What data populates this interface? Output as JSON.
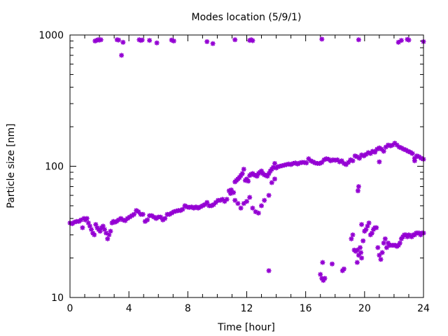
{
  "chart_data": {
    "type": "scatter",
    "title": "Modes location (5/9/1)",
    "xlabel": "Time [hour]",
    "ylabel": "Particle size [nm]",
    "xlim": [
      0,
      24
    ],
    "ylim": [
      10,
      1000
    ],
    "y_scale": "log",
    "x_ticks": [
      0,
      4,
      8,
      12,
      16,
      20,
      24
    ],
    "x_tick_labels": [
      "0",
      "4",
      "8",
      "12",
      "16",
      "20",
      "24"
    ],
    "y_ticks": [
      10,
      100,
      1000
    ],
    "y_tick_labels": [
      "10",
      "100",
      "1000"
    ],
    "grid": false,
    "legend": "none",
    "marker_color": "#9400d3",
    "series": [
      {
        "points": [
          [
            0.0,
            37
          ],
          [
            0.15,
            36.5
          ],
          [
            0.3,
            37.5
          ],
          [
            0.45,
            38
          ],
          [
            0.6,
            38
          ],
          [
            0.75,
            39
          ],
          [
            0.85,
            34
          ],
          [
            0.95,
            40
          ],
          [
            1.05,
            39
          ],
          [
            1.15,
            40
          ],
          [
            1.25,
            37
          ],
          [
            1.35,
            35
          ],
          [
            1.45,
            33
          ],
          [
            1.55,
            31
          ],
          [
            1.65,
            30
          ],
          [
            1.75,
            36
          ],
          [
            1.85,
            34
          ],
          [
            1.95,
            33
          ],
          [
            2.05,
            32
          ],
          [
            2.15,
            34
          ],
          [
            2.25,
            35
          ],
          [
            2.35,
            33
          ],
          [
            2.45,
            31
          ],
          [
            2.55,
            28
          ],
          [
            2.65,
            30
          ],
          [
            2.75,
            32
          ],
          [
            2.85,
            37
          ],
          [
            2.95,
            38
          ],
          [
            3.05,
            37.5
          ],
          [
            3.15,
            38
          ],
          [
            3.3,
            39
          ],
          [
            3.45,
            40
          ],
          [
            3.6,
            39
          ],
          [
            3.75,
            38.5
          ],
          [
            3.9,
            40
          ],
          [
            4.05,
            41
          ],
          [
            4.2,
            42
          ],
          [
            4.35,
            43
          ],
          [
            4.5,
            46
          ],
          [
            4.65,
            45
          ],
          [
            4.8,
            43
          ],
          [
            4.95,
            43
          ],
          [
            5.1,
            38
          ],
          [
            5.25,
            39
          ],
          [
            5.4,
            42
          ],
          [
            5.55,
            42
          ],
          [
            5.7,
            41
          ],
          [
            5.85,
            40
          ],
          [
            6.0,
            41
          ],
          [
            6.15,
            41
          ],
          [
            6.3,
            39
          ],
          [
            6.45,
            40
          ],
          [
            6.6,
            43
          ],
          [
            6.75,
            43
          ],
          [
            6.9,
            44
          ],
          [
            7.05,
            45
          ],
          [
            7.2,
            45.5
          ],
          [
            7.35,
            46
          ],
          [
            7.5,
            46
          ],
          [
            7.65,
            47
          ],
          [
            7.8,
            50
          ],
          [
            7.95,
            49
          ],
          [
            8.1,
            48.5
          ],
          [
            8.25,
            49
          ],
          [
            8.4,
            48
          ],
          [
            8.55,
            49
          ],
          [
            8.7,
            48
          ],
          [
            8.85,
            49
          ],
          [
            9.0,
            50
          ],
          [
            9.15,
            51
          ],
          [
            9.3,
            53
          ],
          [
            9.45,
            50
          ],
          [
            9.6,
            50
          ],
          [
            9.75,
            51
          ],
          [
            9.9,
            53
          ],
          [
            10.05,
            55
          ],
          [
            10.2,
            55
          ],
          [
            10.35,
            56
          ],
          [
            10.5,
            54
          ],
          [
            10.65,
            56
          ],
          [
            10.8,
            65
          ],
          [
            10.95,
            66
          ],
          [
            11.1,
            63
          ],
          [
            11.2,
            76
          ],
          [
            11.3,
            78
          ],
          [
            11.4,
            80
          ],
          [
            11.5,
            82
          ],
          [
            11.6,
            85
          ],
          [
            11.7,
            88
          ],
          [
            11.8,
            95
          ],
          [
            11.9,
            78
          ],
          [
            12.0,
            80
          ],
          [
            12.1,
            77
          ],
          [
            12.2,
            85
          ],
          [
            12.3,
            87
          ],
          [
            12.4,
            88
          ],
          [
            12.5,
            86
          ],
          [
            12.6,
            85
          ],
          [
            12.7,
            84
          ],
          [
            12.8,
            88
          ],
          [
            12.9,
            90
          ],
          [
            13.0,
            92
          ],
          [
            13.1,
            88
          ],
          [
            13.2,
            86
          ],
          [
            13.3,
            85
          ],
          [
            13.4,
            84
          ],
          [
            13.5,
            88
          ],
          [
            13.6,
            92
          ],
          [
            13.7,
            95
          ],
          [
            13.8,
            98
          ],
          [
            13.9,
            105
          ],
          [
            14.0,
            97
          ],
          [
            14.1,
            99
          ],
          [
            14.25,
            100
          ],
          [
            14.4,
            101
          ],
          [
            14.55,
            102
          ],
          [
            14.7,
            103
          ],
          [
            14.85,
            104
          ],
          [
            15.0,
            103
          ],
          [
            15.15,
            105
          ],
          [
            15.3,
            106
          ],
          [
            15.45,
            104
          ],
          [
            15.6,
            106
          ],
          [
            15.75,
            107
          ],
          [
            15.9,
            107
          ],
          [
            16.05,
            106
          ],
          [
            16.2,
            114
          ],
          [
            16.35,
            110
          ],
          [
            16.5,
            108
          ],
          [
            16.65,
            106
          ],
          [
            16.8,
            105
          ],
          [
            16.95,
            105
          ],
          [
            17.1,
            107
          ],
          [
            17.25,
            112
          ],
          [
            17.4,
            114
          ],
          [
            17.55,
            113
          ],
          [
            17.7,
            110
          ],
          [
            17.85,
            112
          ],
          [
            18.0,
            111
          ],
          [
            18.15,
            112
          ],
          [
            18.3,
            108
          ],
          [
            18.45,
            110
          ],
          [
            18.6,
            105
          ],
          [
            18.75,
            103
          ],
          [
            18.9,
            107
          ],
          [
            19.05,
            112
          ],
          [
            19.2,
            110
          ],
          [
            19.35,
            120
          ],
          [
            19.5,
            118
          ],
          [
            19.65,
            115
          ],
          [
            19.8,
            122
          ],
          [
            19.95,
            120
          ],
          [
            20.1,
            123
          ],
          [
            20.25,
            127
          ],
          [
            20.4,
            125
          ],
          [
            20.55,
            130
          ],
          [
            20.7,
            128
          ],
          [
            20.85,
            135
          ],
          [
            21.0,
            138
          ],
          [
            21.15,
            135
          ],
          [
            21.3,
            130
          ],
          [
            21.45,
            140
          ],
          [
            21.6,
            145
          ],
          [
            21.75,
            143
          ],
          [
            21.9,
            145
          ],
          [
            22.05,
            150
          ],
          [
            22.2,
            145
          ],
          [
            22.35,
            140
          ],
          [
            22.5,
            138
          ],
          [
            22.65,
            135
          ],
          [
            22.8,
            133
          ],
          [
            22.95,
            130
          ],
          [
            23.1,
            128
          ],
          [
            23.25,
            125
          ],
          [
            23.4,
            115
          ],
          [
            23.55,
            120
          ],
          [
            23.7,
            118
          ],
          [
            23.85,
            115
          ],
          [
            24.0,
            113
          ],
          [
            10.9,
            62
          ],
          [
            11.2,
            55
          ],
          [
            11.4,
            52
          ],
          [
            11.6,
            48
          ],
          [
            11.8,
            52
          ],
          [
            12.0,
            54
          ],
          [
            12.2,
            58
          ],
          [
            12.4,
            48
          ],
          [
            12.6,
            45
          ],
          [
            12.8,
            44
          ],
          [
            13.0,
            50
          ],
          [
            13.2,
            55
          ],
          [
            13.5,
            60
          ],
          [
            13.7,
            75
          ],
          [
            13.9,
            80
          ],
          [
            21.0,
            108
          ],
          [
            23.4,
            110
          ],
          [
            13.5,
            16
          ],
          [
            17.0,
            15
          ],
          [
            17.1,
            14
          ],
          [
            17.2,
            13.5
          ],
          [
            17.3,
            14
          ],
          [
            17.15,
            18.5
          ],
          [
            17.8,
            18
          ],
          [
            18.5,
            16
          ],
          [
            18.6,
            16.5
          ],
          [
            19.1,
            28
          ],
          [
            19.2,
            30
          ],
          [
            19.3,
            23
          ],
          [
            19.4,
            22.5
          ],
          [
            19.5,
            23
          ],
          [
            19.6,
            21
          ],
          [
            19.7,
            24
          ],
          [
            19.75,
            22
          ],
          [
            19.8,
            20
          ],
          [
            19.55,
            65
          ],
          [
            19.6,
            70
          ],
          [
            19.5,
            18.5
          ],
          [
            19.8,
            36
          ],
          [
            19.9,
            27
          ],
          [
            20.0,
            32
          ],
          [
            20.1,
            33
          ],
          [
            20.2,
            35
          ],
          [
            20.3,
            37
          ],
          [
            20.4,
            30
          ],
          [
            20.5,
            31
          ],
          [
            20.6,
            33
          ],
          [
            20.7,
            34
          ],
          [
            20.8,
            34
          ],
          [
            20.9,
            24
          ],
          [
            21.0,
            21
          ],
          [
            21.1,
            19.5
          ],
          [
            21.2,
            22
          ],
          [
            21.3,
            26
          ],
          [
            21.4,
            28
          ],
          [
            21.5,
            24
          ],
          [
            21.6,
            26
          ],
          [
            21.7,
            25
          ],
          [
            21.8,
            25
          ],
          [
            21.9,
            25
          ],
          [
            22.0,
            25
          ],
          [
            22.1,
            25
          ],
          [
            22.2,
            24.5
          ],
          [
            22.3,
            25
          ],
          [
            22.4,
            26
          ],
          [
            22.5,
            28
          ],
          [
            22.6,
            29
          ],
          [
            22.7,
            30
          ],
          [
            22.8,
            30
          ],
          [
            22.9,
            29
          ],
          [
            23.0,
            30
          ],
          [
            23.1,
            29.5
          ],
          [
            23.2,
            29
          ],
          [
            23.3,
            30
          ],
          [
            23.4,
            30
          ],
          [
            23.5,
            31
          ],
          [
            23.6,
            31
          ],
          [
            23.7,
            31
          ],
          [
            23.8,
            30
          ],
          [
            23.9,
            31
          ],
          [
            24.0,
            31
          ],
          [
            1.7,
            900
          ],
          [
            1.8,
            910
          ],
          [
            1.9,
            920
          ],
          [
            2.0,
            915
          ],
          [
            2.1,
            920
          ],
          [
            3.2,
            920
          ],
          [
            3.3,
            915
          ],
          [
            3.5,
            700
          ],
          [
            3.6,
            880
          ],
          [
            4.7,
            920
          ],
          [
            4.8,
            910
          ],
          [
            4.9,
            915
          ],
          [
            5.4,
            910
          ],
          [
            5.9,
            870
          ],
          [
            6.9,
            915
          ],
          [
            7.05,
            900
          ],
          [
            9.3,
            890
          ],
          [
            9.7,
            860
          ],
          [
            11.2,
            920
          ],
          [
            12.2,
            910
          ],
          [
            12.3,
            920
          ],
          [
            12.4,
            905
          ],
          [
            17.1,
            930
          ],
          [
            19.6,
            920
          ],
          [
            22.3,
            880
          ],
          [
            22.5,
            910
          ],
          [
            22.9,
            925
          ],
          [
            23.0,
            915
          ],
          [
            24.0,
            890
          ]
        ]
      }
    ]
  }
}
